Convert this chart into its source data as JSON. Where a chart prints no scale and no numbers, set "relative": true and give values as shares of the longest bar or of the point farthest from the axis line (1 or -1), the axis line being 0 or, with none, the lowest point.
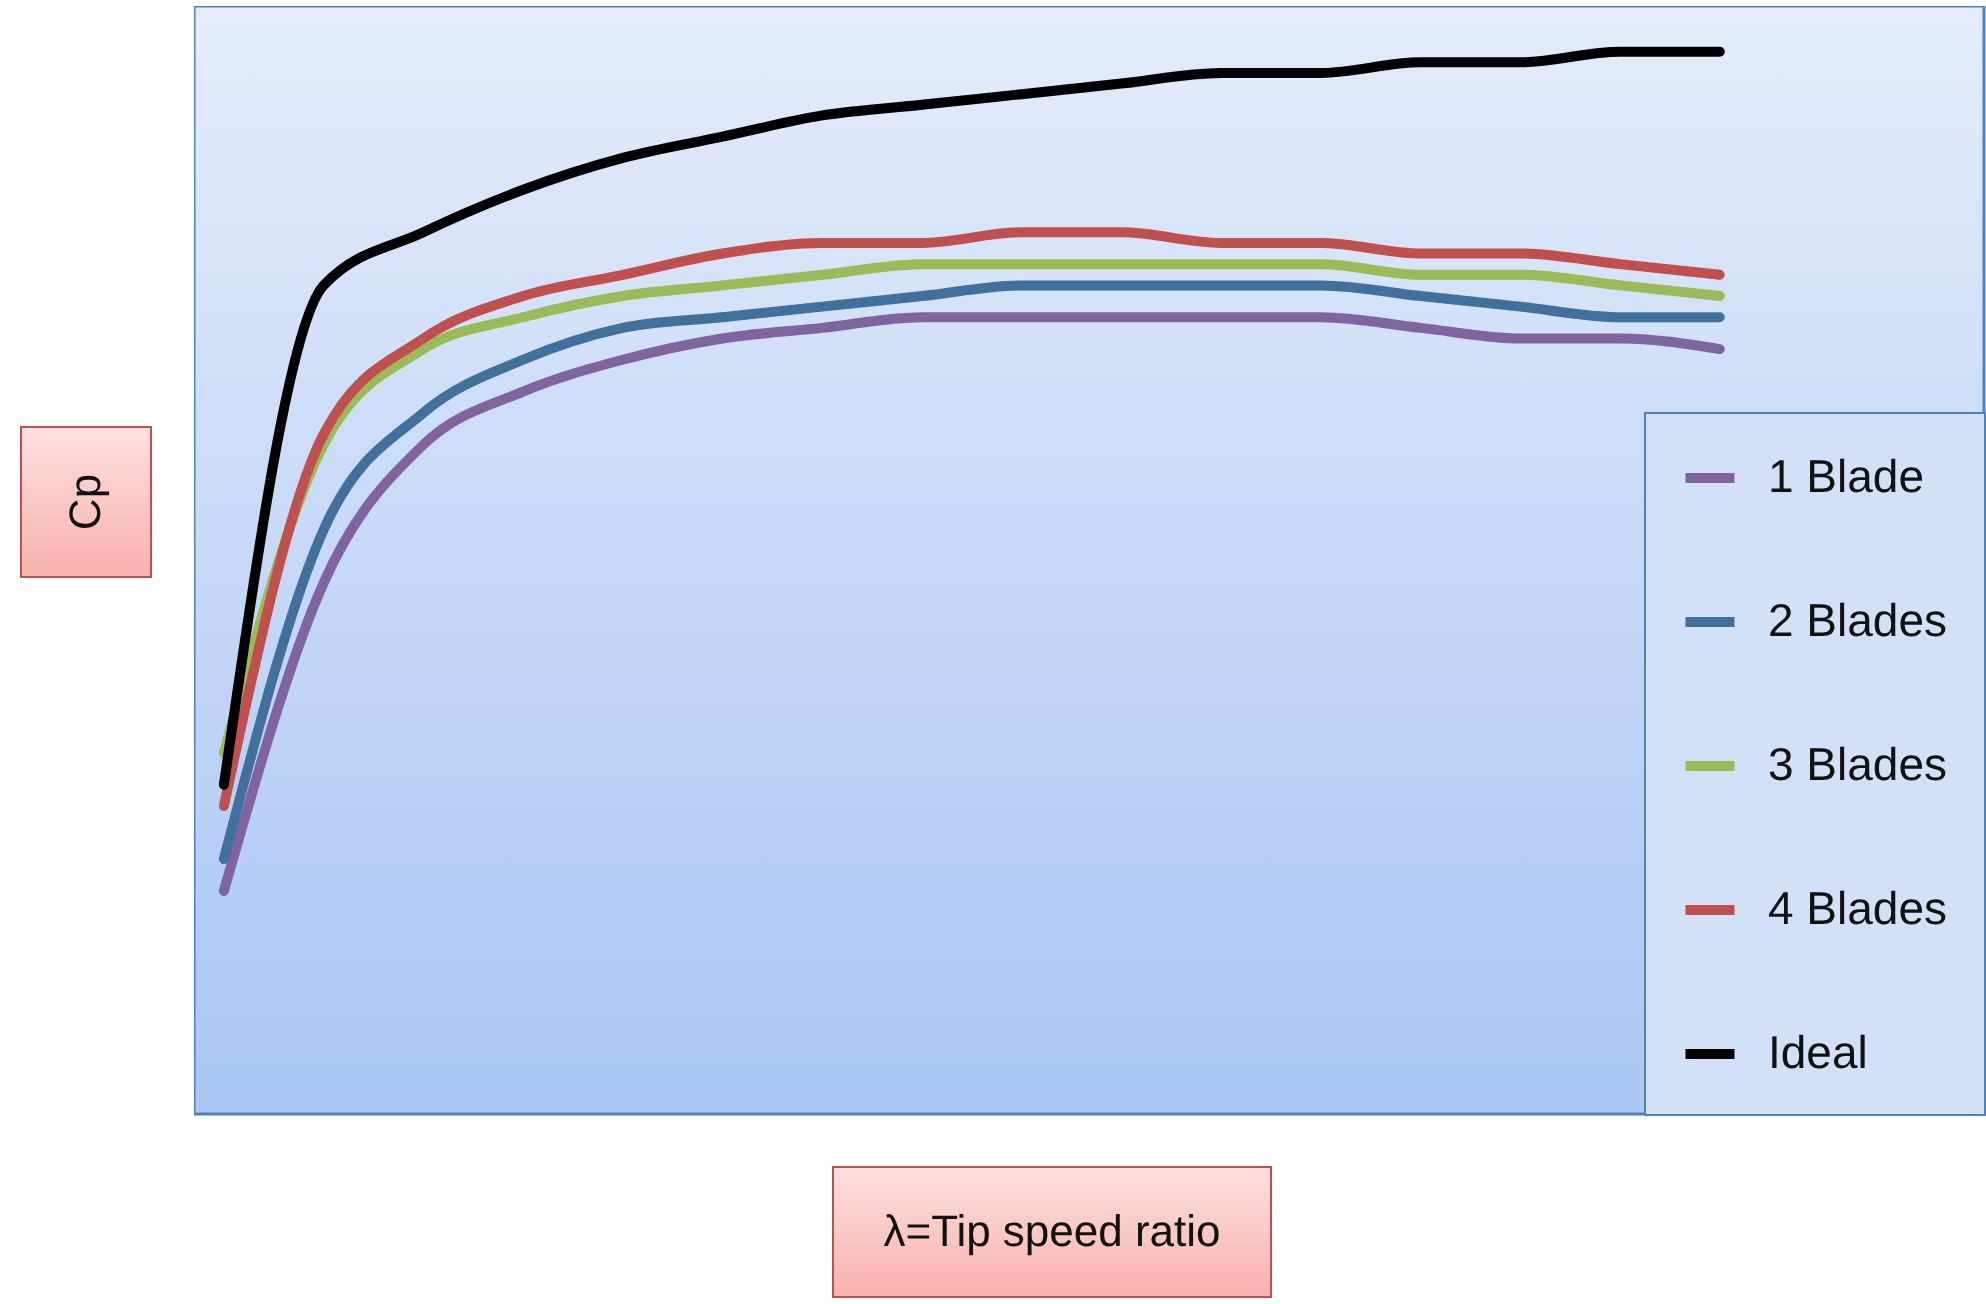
{
  "chart_data": {
    "type": "line",
    "xlabel": "λ=Tip speed ratio",
    "ylabel": "Cp",
    "relative": true,
    "legend": "bottom right",
    "categories": [
      null,
      null,
      null,
      null,
      null,
      null,
      null,
      null,
      null,
      null,
      null,
      null,
      null,
      null,
      null,
      null
    ],
    "series": [
      {
        "name": "1 Blade",
        "color": "#8064a2",
        "values": [
          0.21,
          0.5,
          0.63,
          0.68,
          0.71,
          0.73,
          0.74,
          0.75,
          0.75,
          0.75,
          0.75,
          0.75,
          0.74,
          0.73,
          0.73,
          0.72
        ]
      },
      {
        "name": "2 Blades",
        "color": "#41709c",
        "values": [
          0.24,
          0.55,
          0.66,
          0.71,
          0.74,
          0.75,
          0.76,
          0.77,
          0.78,
          0.78,
          0.78,
          0.78,
          0.77,
          0.76,
          0.75,
          0.75
        ]
      },
      {
        "name": "3 Blades",
        "color": "#9bbb59",
        "values": [
          0.34,
          0.63,
          0.72,
          0.75,
          0.77,
          0.78,
          0.79,
          0.8,
          0.8,
          0.8,
          0.8,
          0.8,
          0.79,
          0.79,
          0.78,
          0.77
        ]
      },
      {
        "name": "4 Blades",
        "color": "#c0504d",
        "values": [
          0.29,
          0.64,
          0.73,
          0.77,
          0.79,
          0.81,
          0.82,
          0.82,
          0.83,
          0.83,
          0.82,
          0.82,
          0.81,
          0.81,
          0.8,
          0.79
        ]
      },
      {
        "name": "Ideal",
        "color": "#000000",
        "values": [
          0.31,
          0.78,
          0.83,
          0.87,
          0.9,
          0.92,
          0.94,
          0.95,
          0.96,
          0.97,
          0.98,
          0.98,
          0.99,
          0.99,
          1.0,
          1.0
        ]
      }
    ]
  }
}
